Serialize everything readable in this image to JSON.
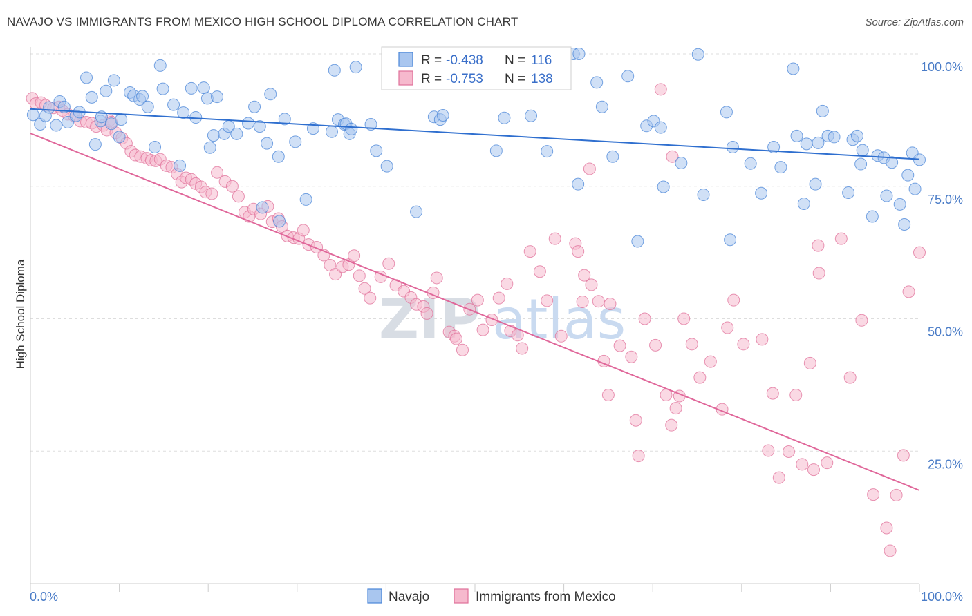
{
  "title": "NAVAJO VS IMMIGRANTS FROM MEXICO HIGH SCHOOL DIPLOMA CORRELATION CHART",
  "source": "Source: ZipAtlas.com",
  "watermark": {
    "zip": "ZIP",
    "atlas": "atlas"
  },
  "colors": {
    "navajo": "#4a86d8",
    "navajo_fill": "#a9c6ef",
    "mexico": "#e0709a",
    "mexico_fill": "#f6b9cd",
    "tick": "#4a7cc7"
  },
  "legend": {
    "rows": [
      {
        "r_label": "R =",
        "r_value": "-0.438",
        "n_label": "N =",
        "n_value": "116"
      },
      {
        "r_label": "R =",
        "r_value": "-0.753",
        "n_label": "N =",
        "n_value": "138"
      }
    ]
  },
  "chart_data": {
    "type": "scatter",
    "title": "NAVAJO VS IMMIGRANTS FROM MEXICO HIGH SCHOOL DIPLOMA CORRELATION CHART",
    "xlabel": "",
    "ylabel": "High School Diploma",
    "xlim": [
      0,
      100
    ],
    "ylim": [
      0,
      100
    ],
    "x_tick_labels": [
      "0.0%",
      "100.0%"
    ],
    "y_tick_labels": [
      "100.0%",
      "75.0%",
      "50.0%",
      "25.0%"
    ],
    "y_ticks": [
      100,
      75,
      50,
      25
    ],
    "grid": true,
    "legend_position": "top-center",
    "series": [
      {
        "name": "Navajo",
        "trend": {
          "x": [
            0,
            100
          ],
          "y": [
            89.6,
            80.1
          ]
        },
        "points": [
          [
            0.3,
            88.5
          ],
          [
            1.1,
            86.7
          ],
          [
            1.7,
            88.3
          ],
          [
            2.1,
            89.9
          ],
          [
            2.9,
            86.5
          ],
          [
            3.3,
            91
          ],
          [
            3.8,
            90
          ],
          [
            4.2,
            87.1
          ],
          [
            5.1,
            88.3
          ],
          [
            5.5,
            89
          ],
          [
            6.3,
            95.5
          ],
          [
            6.9,
            91.8
          ],
          [
            7.3,
            82.9
          ],
          [
            7.9,
            87.3
          ],
          [
            8,
            88.1
          ],
          [
            8.5,
            93
          ],
          [
            9.1,
            86.8
          ],
          [
            9.4,
            95
          ],
          [
            10,
            84.3
          ],
          [
            10.2,
            87.6
          ],
          [
            11.2,
            92.7
          ],
          [
            11.6,
            92.1
          ],
          [
            12.3,
            91.4
          ],
          [
            12.6,
            92
          ],
          [
            13.2,
            90
          ],
          [
            14,
            82.4
          ],
          [
            14.6,
            97.8
          ],
          [
            14.9,
            93.4
          ],
          [
            16.1,
            90.4
          ],
          [
            16.8,
            78.9
          ],
          [
            17.2,
            88.9
          ],
          [
            18.1,
            93.5
          ],
          [
            18.6,
            88
          ],
          [
            19.5,
            93.6
          ],
          [
            19.9,
            91.6
          ],
          [
            20.2,
            82.3
          ],
          [
            20.6,
            84.6
          ],
          [
            21,
            91.9
          ],
          [
            21.8,
            84.9
          ],
          [
            22.3,
            86.3
          ],
          [
            23.2,
            84.9
          ],
          [
            24.5,
            86.9
          ],
          [
            25.2,
            90
          ],
          [
            25.8,
            86.3
          ],
          [
            26.1,
            71
          ],
          [
            26.6,
            83.1
          ],
          [
            27,
            92.4
          ],
          [
            28,
            68.4
          ],
          [
            27.9,
            80.6
          ],
          [
            28.6,
            87.7
          ],
          [
            29.8,
            83.4
          ],
          [
            31,
            72.5
          ],
          [
            31.8,
            85.9
          ],
          [
            33.9,
            85.3
          ],
          [
            34.2,
            96.9
          ],
          [
            34.6,
            87.6
          ],
          [
            35.3,
            86.7
          ],
          [
            35.5,
            86.8
          ],
          [
            35.9,
            84.9
          ],
          [
            36.1,
            85.8
          ],
          [
            36.6,
            97.5
          ],
          [
            38.3,
            86.7
          ],
          [
            38.9,
            81.7
          ],
          [
            40.1,
            78.8
          ],
          [
            43.4,
            70.2
          ],
          [
            45.4,
            88.1
          ],
          [
            46.1,
            87.6
          ],
          [
            46.4,
            88.4
          ],
          [
            46.7,
            95.2
          ],
          [
            52.4,
            81.7
          ],
          [
            53.3,
            87.9
          ],
          [
            56.3,
            88.3
          ],
          [
            58.1,
            81.6
          ],
          [
            61.1,
            100
          ],
          [
            61.7,
            100
          ],
          [
            61.6,
            75.4
          ],
          [
            63.7,
            94.6
          ],
          [
            64.3,
            90
          ],
          [
            65.5,
            80.6
          ],
          [
            67.2,
            95.8
          ],
          [
            68.3,
            64.6
          ],
          [
            69.3,
            86.4
          ],
          [
            70.1,
            87.3
          ],
          [
            70.9,
            86.1
          ],
          [
            71.2,
            74.9
          ],
          [
            73.2,
            79.4
          ],
          [
            75.1,
            99.9
          ],
          [
            75.7,
            73.4
          ],
          [
            78.3,
            89
          ],
          [
            78.7,
            64.9
          ],
          [
            79,
            82.4
          ],
          [
            81,
            79.3
          ],
          [
            82.2,
            73.7
          ],
          [
            83.6,
            82.4
          ],
          [
            84.4,
            78.6
          ],
          [
            85.8,
            97.2
          ],
          [
            86.2,
            84.5
          ],
          [
            87,
            71.7
          ],
          [
            87.3,
            83
          ],
          [
            88.3,
            75.4
          ],
          [
            88.6,
            83.2
          ],
          [
            89.1,
            89.2
          ],
          [
            89.7,
            84.5
          ],
          [
            90.4,
            84.3
          ],
          [
            92,
            73.8
          ],
          [
            92.5,
            83.8
          ],
          [
            93.4,
            79.2
          ],
          [
            93,
            84.5
          ],
          [
            93.6,
            81.8
          ],
          [
            94.7,
            69.3
          ],
          [
            95.3,
            80.8
          ],
          [
            96,
            80.4
          ],
          [
            96.3,
            73.2
          ],
          [
            96.9,
            79.5
          ],
          [
            97.8,
            71.6
          ],
          [
            98.3,
            67.8
          ],
          [
            98.7,
            77.1
          ],
          [
            99.2,
            81.3
          ],
          [
            99.5,
            74.5
          ],
          [
            100,
            80
          ]
        ]
      },
      {
        "name": "Immigrants from Mexico",
        "trend": {
          "x": [
            0,
            100
          ],
          "y": [
            85,
            17.6
          ]
        },
        "points": [
          [
            0.2,
            91.6
          ],
          [
            0.6,
            90.6
          ],
          [
            1.2,
            90.8
          ],
          [
            1.7,
            90.3
          ],
          [
            2.6,
            89.8
          ],
          [
            3.2,
            90
          ],
          [
            3.6,
            89.3
          ],
          [
            4.2,
            88.6
          ],
          [
            4.9,
            88.3
          ],
          [
            5.6,
            87.3
          ],
          [
            6.3,
            87.1
          ],
          [
            6.9,
            86.9
          ],
          [
            7.4,
            86.3
          ],
          [
            8.2,
            86.5
          ],
          [
            8.6,
            85.6
          ],
          [
            8.9,
            87.4
          ],
          [
            9.1,
            87.1
          ],
          [
            9.6,
            85.1
          ],
          [
            10.3,
            84.1
          ],
          [
            10.8,
            83.1
          ],
          [
            11.3,
            81.6
          ],
          [
            11.8,
            80.9
          ],
          [
            12.4,
            80.6
          ],
          [
            13.1,
            80.3
          ],
          [
            13.6,
            79.9
          ],
          [
            14.1,
            79.8
          ],
          [
            14.6,
            80.1
          ],
          [
            15.3,
            78.9
          ],
          [
            15.9,
            78.6
          ],
          [
            16.5,
            77.3
          ],
          [
            17,
            75.8
          ],
          [
            17.5,
            76.6
          ],
          [
            18.1,
            76.3
          ],
          [
            18.6,
            75.5
          ],
          [
            19.2,
            74.9
          ],
          [
            19.7,
            73.9
          ],
          [
            20.4,
            73.6
          ],
          [
            21,
            77.6
          ],
          [
            21.9,
            75.9
          ],
          [
            22.7,
            75
          ],
          [
            23.4,
            73.1
          ],
          [
            24.1,
            70.1
          ],
          [
            24.6,
            69.3
          ],
          [
            25.1,
            70.7
          ],
          [
            25.9,
            69.8
          ],
          [
            26.7,
            71.2
          ],
          [
            27.2,
            68.3
          ],
          [
            27.9,
            68.9
          ],
          [
            28.3,
            67.4
          ],
          [
            28.9,
            65.6
          ],
          [
            29.6,
            65.3
          ],
          [
            30.2,
            65.1
          ],
          [
            30.7,
            66.7
          ],
          [
            31.3,
            64
          ],
          [
            32.2,
            63.5
          ],
          [
            33,
            62
          ],
          [
            33.7,
            60.1
          ],
          [
            34.3,
            58.4
          ],
          [
            35.1,
            59.8
          ],
          [
            35.8,
            60.2
          ],
          [
            36.4,
            61.9
          ],
          [
            37,
            58.1
          ],
          [
            37.6,
            55.7
          ],
          [
            38.2,
            53.9
          ],
          [
            39.4,
            57.9
          ],
          [
            40.3,
            60.4
          ],
          [
            41.1,
            56.3
          ],
          [
            42,
            55.2
          ],
          [
            42.8,
            54
          ],
          [
            43.4,
            52.7
          ],
          [
            44.2,
            52.3
          ],
          [
            44.6,
            51
          ],
          [
            45.3,
            54.9
          ],
          [
            45.7,
            57.7
          ],
          [
            47.1,
            47.5
          ],
          [
            47.7,
            46.7
          ],
          [
            47.9,
            46.2
          ],
          [
            48.6,
            44.1
          ],
          [
            49.4,
            51.8
          ],
          [
            50.3,
            53.5
          ],
          [
            50.9,
            47.9
          ],
          [
            51.9,
            49.8
          ],
          [
            52.7,
            53.9
          ],
          [
            53.6,
            56.6
          ],
          [
            54,
            47.7
          ],
          [
            54.8,
            46.9
          ],
          [
            55.3,
            44.4
          ],
          [
            56.2,
            62.7
          ],
          [
            57.3,
            58.9
          ],
          [
            58.1,
            53.4
          ],
          [
            59,
            65.1
          ],
          [
            59.7,
            46.7
          ],
          [
            61.3,
            64.2
          ],
          [
            61.6,
            62.7
          ],
          [
            62.1,
            53.2
          ],
          [
            62.3,
            58.2
          ],
          [
            63.1,
            56.4
          ],
          [
            63.9,
            53.3
          ],
          [
            64.5,
            42
          ],
          [
            65,
            35.6
          ],
          [
            65.2,
            52.8
          ],
          [
            66.3,
            44.9
          ],
          [
            67.6,
            42.8
          ],
          [
            68.1,
            30.8
          ],
          [
            68.4,
            24.1
          ],
          [
            69.1,
            50
          ],
          [
            70.3,
            45
          ],
          [
            71.5,
            35.6
          ],
          [
            72.1,
            29.9
          ],
          [
            72.6,
            33.1
          ],
          [
            73,
            35.4
          ],
          [
            73.5,
            50
          ],
          [
            74.4,
            45.2
          ],
          [
            75.3,
            38.9
          ],
          [
            76.5,
            41.9
          ],
          [
            77.8,
            32.9
          ],
          [
            78.4,
            48.3
          ],
          [
            79.1,
            53.5
          ],
          [
            80.2,
            45.2
          ],
          [
            82.3,
            46.1
          ],
          [
            83,
            25.1
          ],
          [
            83.5,
            35.9
          ],
          [
            84.2,
            20
          ],
          [
            85.3,
            24.9
          ],
          [
            86.1,
            35.6
          ],
          [
            86.8,
            22.5
          ],
          [
            87.7,
            41.6
          ],
          [
            88.1,
            21.5
          ],
          [
            88.7,
            58.6
          ],
          [
            89.6,
            22.8
          ],
          [
            91.2,
            65.1
          ],
          [
            92.2,
            38.9
          ],
          [
            93.5,
            49.7
          ],
          [
            94.8,
            16.8
          ],
          [
            96.3,
            10.5
          ],
          [
            96.7,
            6.2
          ],
          [
            97.4,
            16.7
          ],
          [
            98.2,
            24.2
          ],
          [
            98.8,
            55.1
          ],
          [
            100,
            62.5
          ],
          [
            62.9,
            78.3
          ],
          [
            70.9,
            93.3
          ],
          [
            72.2,
            80.6
          ],
          [
            88.6,
            63.8
          ]
        ]
      }
    ]
  },
  "bottom_legend": [
    {
      "label": "Navajo"
    },
    {
      "label": "Immigrants from Mexico"
    }
  ]
}
